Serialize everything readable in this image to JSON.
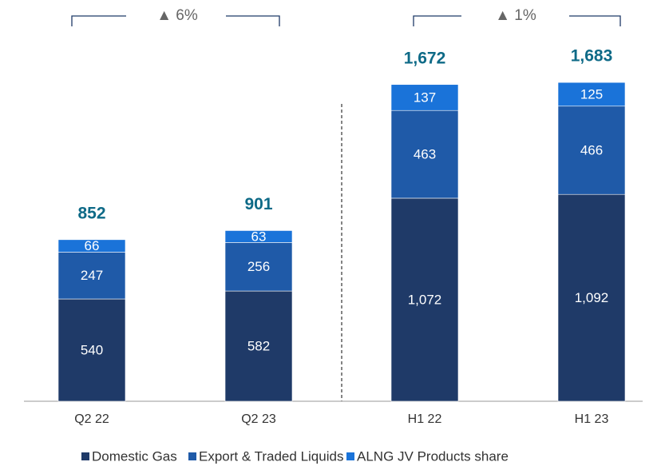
{
  "chart_data": {
    "type": "stacked_bar",
    "categories": [
      "Q2 22",
      "Q2 23",
      "H1 22",
      "H1 23"
    ],
    "series": [
      {
        "name": "Domestic Gas",
        "color": "#1f3a68",
        "values": [
          540,
          582,
          1072,
          1092
        ],
        "value_labels": [
          "540",
          "582",
          "1,072",
          "1,092"
        ]
      },
      {
        "name": "Export & Traded Liquids",
        "color": "#1f5aa8",
        "values": [
          247,
          256,
          463,
          466
        ]
      },
      {
        "name": "ALNG JV Products share",
        "color": "#1a73d9",
        "values": [
          66,
          63,
          137,
          125
        ]
      }
    ],
    "totals": [
      852,
      901,
      1672,
      1683
    ],
    "total_labels": [
      "852",
      "901",
      "1,672",
      "1,683"
    ],
    "annotations": [
      "▲ 6%",
      "▲ 1%"
    ],
    "ylim": [
      0,
      1865
    ]
  }
}
